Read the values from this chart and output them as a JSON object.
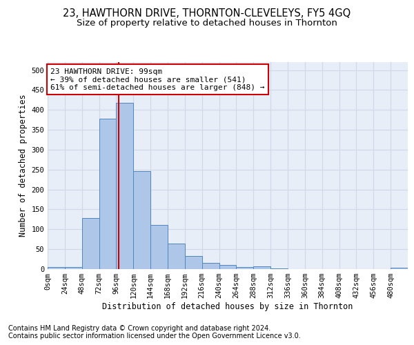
{
  "title": "23, HAWTHORN DRIVE, THORNTON-CLEVELEYS, FY5 4GQ",
  "subtitle": "Size of property relative to detached houses in Thornton",
  "xlabel": "Distribution of detached houses by size in Thornton",
  "ylabel": "Number of detached properties",
  "footnote1": "Contains HM Land Registry data © Crown copyright and database right 2024.",
  "footnote2": "Contains public sector information licensed under the Open Government Licence v3.0.",
  "annotation_line1": "23 HAWTHORN DRIVE: 99sqm",
  "annotation_line2": "← 39% of detached houses are smaller (541)",
  "annotation_line3": "61% of semi-detached houses are larger (848) →",
  "property_size": 99,
  "bin_width": 24,
  "bin_starts": [
    0,
    24,
    48,
    72,
    96,
    120,
    144,
    168,
    192,
    216,
    240,
    264,
    288,
    312,
    336,
    360,
    384,
    408,
    432,
    456,
    480
  ],
  "bar_values": [
    5,
    5,
    128,
    378,
    418,
    246,
    111,
    65,
    33,
    15,
    10,
    5,
    7,
    2,
    0,
    0,
    0,
    0,
    0,
    0,
    3
  ],
  "bar_color": "#aec6e8",
  "bar_edge_color": "#4f86c0",
  "grid_color": "#d0d8e8",
  "background_color": "#e8eef8",
  "vline_color": "#cc0000",
  "vline_x": 99,
  "ylim": [
    0,
    520
  ],
  "yticks": [
    0,
    50,
    100,
    150,
    200,
    250,
    300,
    350,
    400,
    450,
    500
  ],
  "annotation_box_color": "white",
  "annotation_box_edge": "#cc0000",
  "title_fontsize": 10.5,
  "subtitle_fontsize": 9.5,
  "axis_label_fontsize": 8.5,
  "tick_fontsize": 7.5,
  "annotation_fontsize": 8,
  "footnote_fontsize": 7
}
